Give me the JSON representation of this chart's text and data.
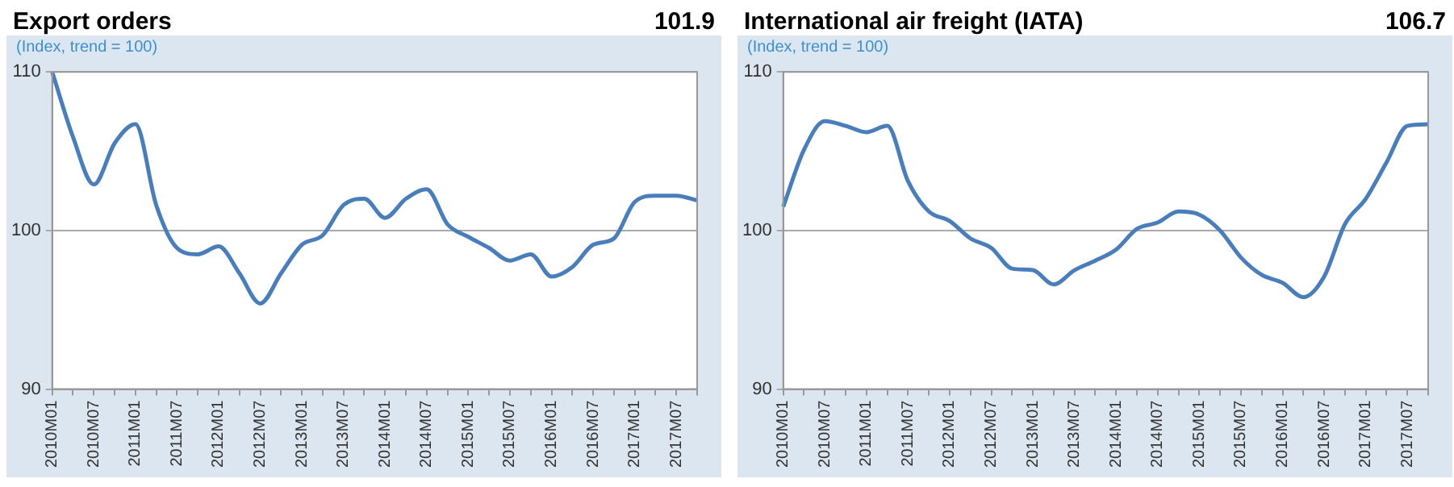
{
  "chart_data": [
    {
      "type": "line",
      "title": "Export orders",
      "subtitle": "(Index, trend = 100)",
      "annotations": [
        "101.9"
      ],
      "categories": [
        "2010M01",
        null,
        "2010M07",
        null,
        "2011M01",
        null,
        "2011M07",
        null,
        "2012M01",
        null,
        "2012M07",
        null,
        "2013M01",
        null,
        "2013M07",
        null,
        "2014M01",
        null,
        "2014M07",
        null,
        "2015M01",
        null,
        "2015M07",
        null,
        "2016M01",
        null,
        "2016M07",
        null,
        "2017M01",
        null,
        "2017M07",
        null
      ],
      "series": [
        {
          "color": "#4a7ebb",
          "values": [
            110,
            105.9,
            102.9,
            105.5,
            106.7,
            101.6,
            98.9,
            98.5,
            99.0,
            97.3,
            95.4,
            97.3,
            99.1,
            99.7,
            101.6,
            102.0,
            100.8,
            102.0,
            102.6,
            100.4,
            99.6,
            98.9,
            98.1,
            98.5,
            97.1,
            97.7,
            99.1,
            99.5,
            101.8,
            102.2,
            102.2,
            101.9
          ]
        }
      ],
      "ylim": [
        90,
        110
      ],
      "yticks": [
        90,
        100,
        110
      ],
      "grid": "y",
      "legend": false,
      "marker": "none",
      "line_style": "solid"
    },
    {
      "type": "line",
      "title": "International air freight (IATA)",
      "subtitle": "(Index, trend = 100)",
      "annotations": [
        "106.7"
      ],
      "categories": [
        "2010M01",
        null,
        "2010M07",
        null,
        "2011M01",
        null,
        "2011M07",
        null,
        "2012M01",
        null,
        "2012M07",
        null,
        "2013M01",
        null,
        "2013M07",
        null,
        "2014M01",
        null,
        "2014M07",
        null,
        "2015M01",
        null,
        "2015M07",
        null,
        "2016M01",
        null,
        "2016M07",
        null,
        "2017M01",
        null,
        "2017M07",
        null
      ],
      "series": [
        {
          "color": "#4a7ebb",
          "values": [
            101.5,
            105.1,
            106.9,
            106.6,
            106.2,
            106.6,
            103.1,
            101.2,
            100.6,
            99.5,
            98.9,
            97.6,
            97.5,
            96.6,
            97.5,
            98.1,
            98.8,
            100.1,
            100.5,
            101.2,
            101.0,
            100.0,
            98.3,
            97.2,
            96.7,
            95.8,
            97.1,
            100.4,
            102.0,
            104.3,
            106.6,
            106.7
          ]
        }
      ],
      "ylim": [
        90,
        110
      ],
      "yticks": [
        90,
        100,
        110
      ],
      "grid": "y",
      "legend": false,
      "marker": "none",
      "line_style": "solid"
    }
  ]
}
